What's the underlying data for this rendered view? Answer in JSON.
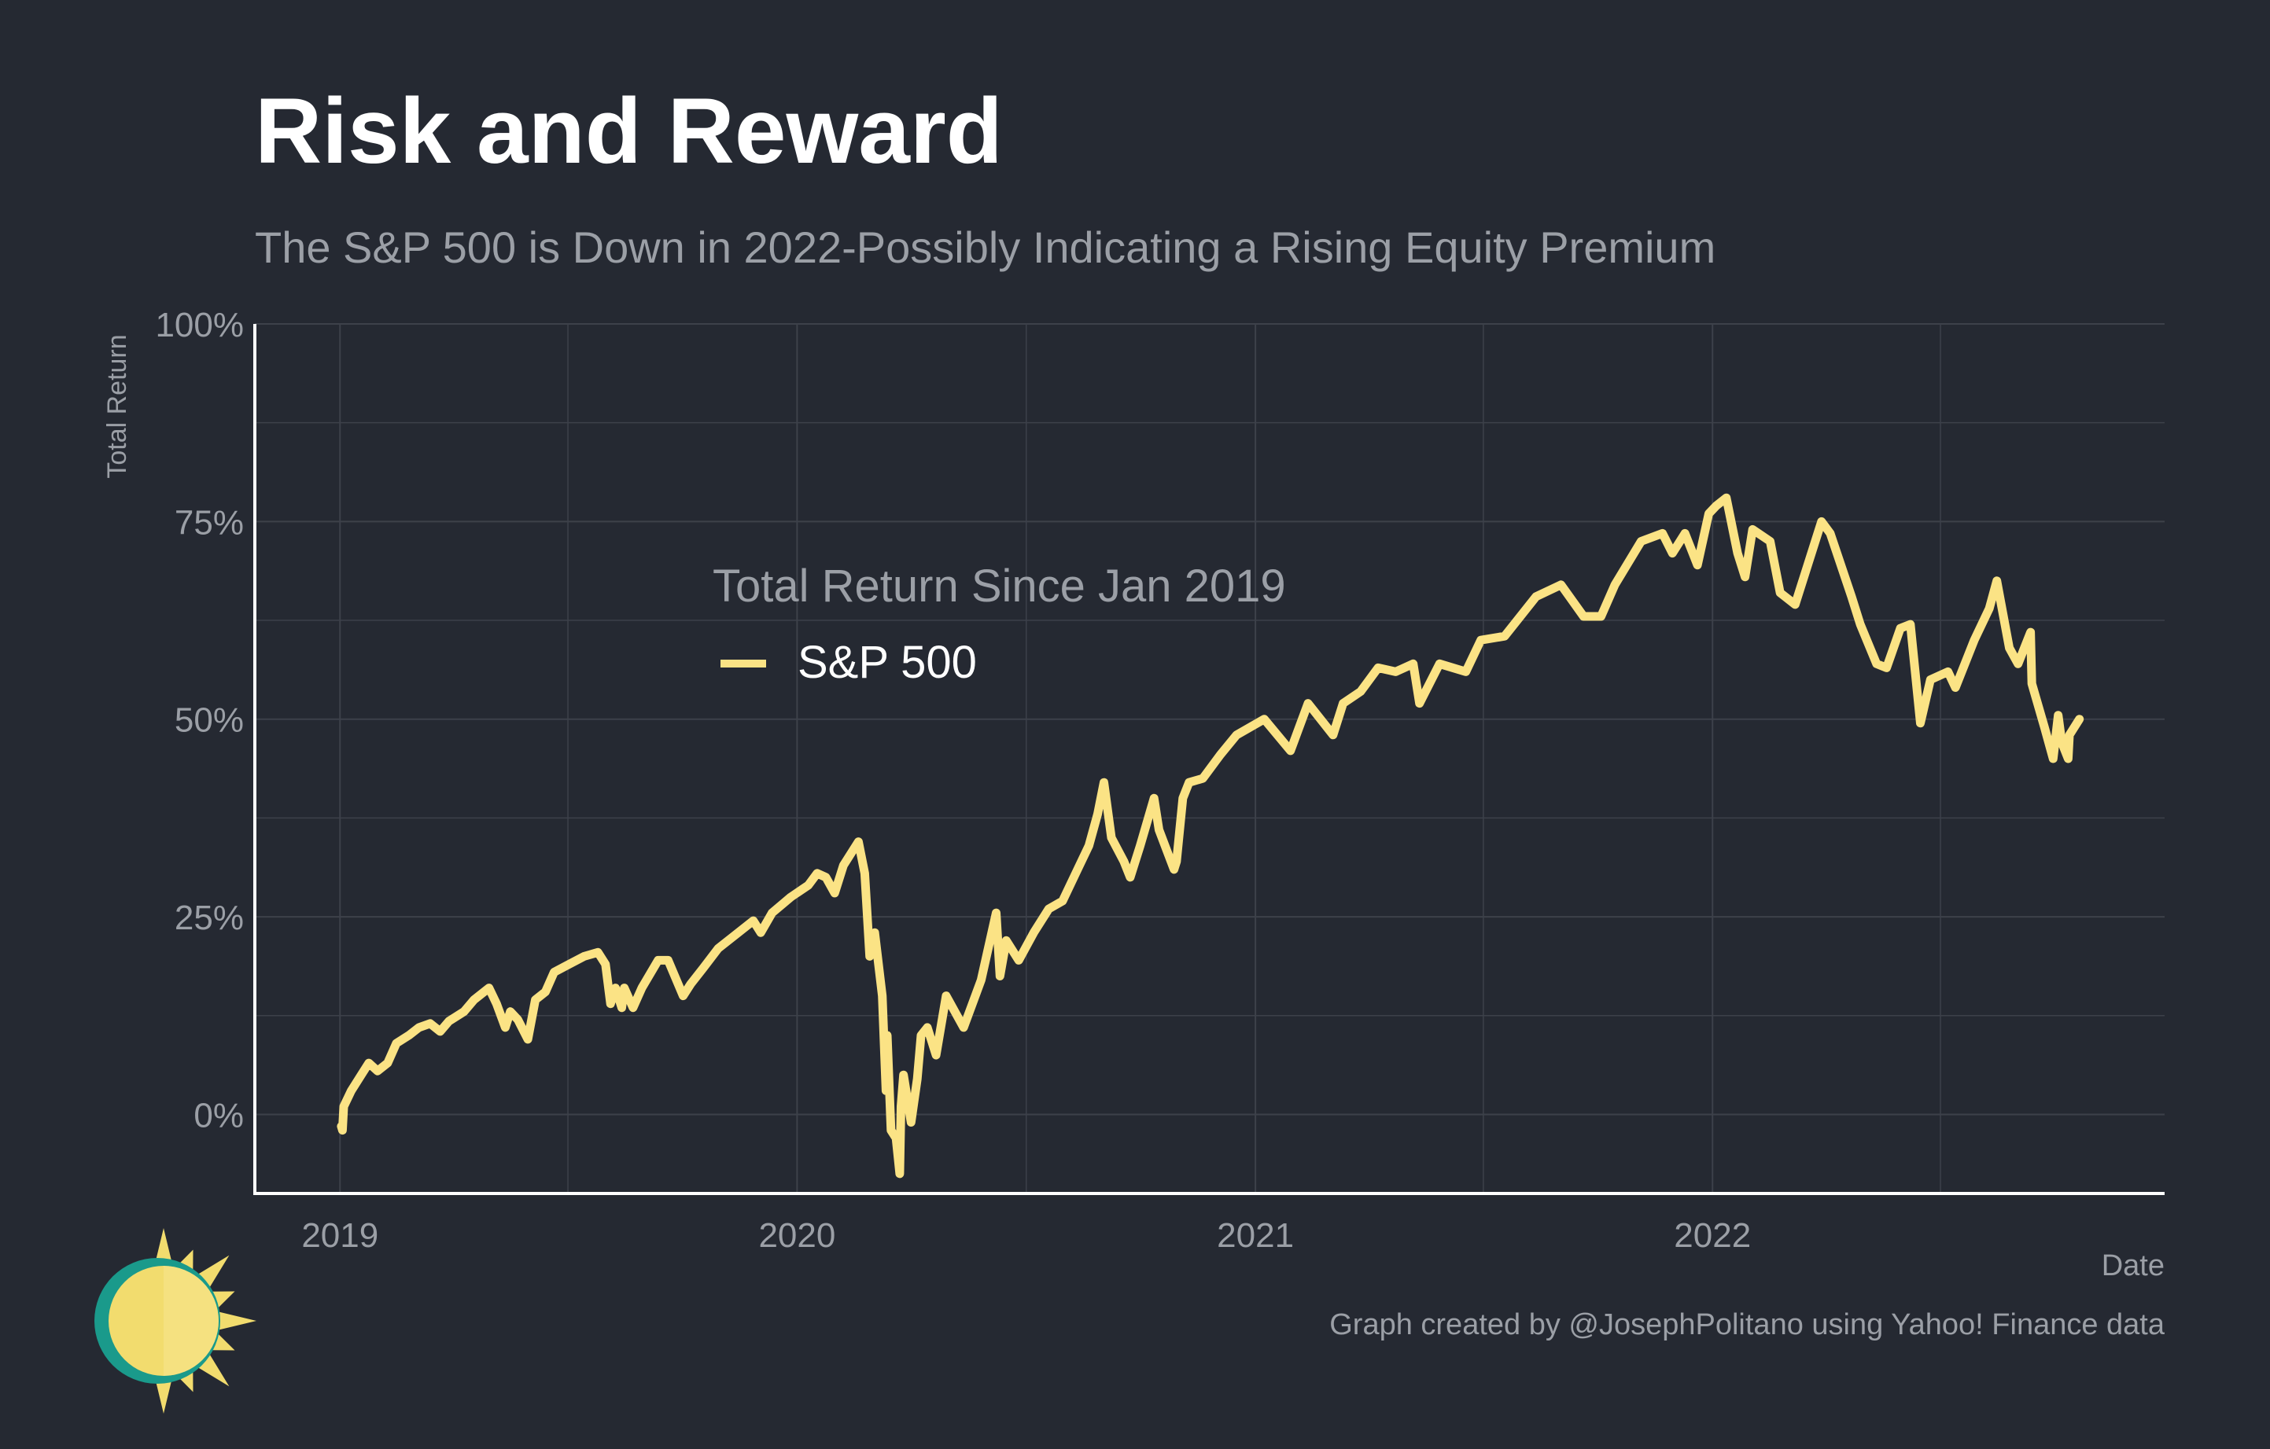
{
  "header": {
    "title": "Risk and Reward",
    "subtitle": "The S&P 500 is Down in 2022-Possibly Indicating a Rising Equity Premium"
  },
  "footer": {
    "caption": "Graph created by @JosephPolitano using Yahoo! Finance data"
  },
  "logo": {
    "icon": "sun-logo-icon",
    "colors": {
      "ring": "#1a9a8b",
      "sun": "#f2dc6e",
      "face": "#f7e48c"
    }
  },
  "colors": {
    "background": "#252932",
    "grid": "#3d414a",
    "axis": "#ffffff",
    "text_muted": "#9b9fa6",
    "series": "#fbe385"
  },
  "chart_data": {
    "type": "line",
    "title": "Risk and Reward",
    "subtitle": "The S&P 500 is Down in 2022-Possibly Indicating a Rising Equity Premium",
    "xlabel": "Date",
    "ylabel": "Total Return",
    "xlim": [
      "2018-10-25",
      "2022-12-28"
    ],
    "ylim": [
      -10,
      100
    ],
    "x_ticks": [
      "2019",
      "2020",
      "2021",
      "2022"
    ],
    "y_ticks": [
      "0%",
      "25%",
      "50%",
      "75%",
      "100%"
    ],
    "y_tick_values": [
      0,
      25,
      50,
      75,
      100
    ],
    "grid": true,
    "legend": {
      "title": "Total Return Since Jan 2019",
      "placement": "center-left",
      "entries": [
        "S&P 500"
      ]
    },
    "series": [
      {
        "name": "S&P 500",
        "unit": "%",
        "points": [
          [
            "2019-01-02",
            -1.5
          ],
          [
            "2019-01-03",
            -2.0
          ],
          [
            "2019-01-04",
            1.0
          ],
          [
            "2019-01-10",
            3.0
          ],
          [
            "2019-01-18",
            5.0
          ],
          [
            "2019-01-24",
            6.5
          ],
          [
            "2019-01-31",
            5.5
          ],
          [
            "2019-02-08",
            6.5
          ],
          [
            "2019-02-15",
            9.0
          ],
          [
            "2019-02-25",
            10.0
          ],
          [
            "2019-03-05",
            11.0
          ],
          [
            "2019-03-14",
            11.5
          ],
          [
            "2019-03-22",
            10.5
          ],
          [
            "2019-03-29",
            11.8
          ],
          [
            "2019-04-10",
            13.0
          ],
          [
            "2019-04-18",
            14.5
          ],
          [
            "2019-04-30",
            16.0
          ],
          [
            "2019-05-06",
            14.0
          ],
          [
            "2019-05-13",
            11.0
          ],
          [
            "2019-05-17",
            13.0
          ],
          [
            "2019-05-23",
            12.0
          ],
          [
            "2019-05-31",
            9.5
          ],
          [
            "2019-06-06",
            14.5
          ],
          [
            "2019-06-14",
            15.5
          ],
          [
            "2019-06-21",
            18.0
          ],
          [
            "2019-07-03",
            19.0
          ],
          [
            "2019-07-15",
            20.0
          ],
          [
            "2019-07-26",
            20.5
          ],
          [
            "2019-08-01",
            19.0
          ],
          [
            "2019-08-05",
            14.0
          ],
          [
            "2019-08-09",
            16.0
          ],
          [
            "2019-08-14",
            13.5
          ],
          [
            "2019-08-16",
            16.0
          ],
          [
            "2019-08-23",
            13.5
          ],
          [
            "2019-08-30",
            16.0
          ],
          [
            "2019-09-12",
            19.5
          ],
          [
            "2019-09-20",
            19.5
          ],
          [
            "2019-10-02",
            15.0
          ],
          [
            "2019-10-08",
            16.5
          ],
          [
            "2019-10-18",
            18.5
          ],
          [
            "2019-10-30",
            21.0
          ],
          [
            "2019-11-15",
            23.0
          ],
          [
            "2019-11-27",
            24.5
          ],
          [
            "2019-12-03",
            23.0
          ],
          [
            "2019-12-12",
            25.5
          ],
          [
            "2019-12-27",
            27.5
          ],
          [
            "2020-01-10",
            29.0
          ],
          [
            "2020-01-17",
            30.5
          ],
          [
            "2020-01-24",
            30.0
          ],
          [
            "2020-01-31",
            28.0
          ],
          [
            "2020-02-07",
            31.5
          ],
          [
            "2020-02-19",
            34.5
          ],
          [
            "2020-02-24",
            30.5
          ],
          [
            "2020-02-28",
            20.0
          ],
          [
            "2020-03-03",
            23.0
          ],
          [
            "2020-03-09",
            15.0
          ],
          [
            "2020-03-12",
            3.0
          ],
          [
            "2020-03-13",
            10.0
          ],
          [
            "2020-03-16",
            -2.0
          ],
          [
            "2020-03-20",
            -3.0
          ],
          [
            "2020-03-23",
            -7.5
          ],
          [
            "2020-03-24",
            1.0
          ],
          [
            "2020-03-26",
            5.0
          ],
          [
            "2020-04-01",
            -1.0
          ],
          [
            "2020-04-06",
            4.5
          ],
          [
            "2020-04-09",
            10.0
          ],
          [
            "2020-04-14",
            11.0
          ],
          [
            "2020-04-21",
            7.5
          ],
          [
            "2020-04-29",
            15.0
          ],
          [
            "2020-05-13",
            11.0
          ],
          [
            "2020-05-27",
            17.0
          ],
          [
            "2020-06-08",
            25.5
          ],
          [
            "2020-06-11",
            17.5
          ],
          [
            "2020-06-16",
            22.0
          ],
          [
            "2020-06-26",
            19.5
          ],
          [
            "2020-07-08",
            23.0
          ],
          [
            "2020-07-20",
            26.0
          ],
          [
            "2020-07-31",
            27.0
          ],
          [
            "2020-08-12",
            31.0
          ],
          [
            "2020-08-21",
            34.0
          ],
          [
            "2020-08-28",
            38.0
          ],
          [
            "2020-09-02",
            42.0
          ],
          [
            "2020-09-08",
            35.0
          ],
          [
            "2020-09-18",
            32.0
          ],
          [
            "2020-09-23",
            30.0
          ],
          [
            "2020-10-01",
            34.0
          ],
          [
            "2020-10-12",
            40.0
          ],
          [
            "2020-10-16",
            36.0
          ],
          [
            "2020-10-28",
            31.0
          ],
          [
            "2020-10-30",
            32.0
          ],
          [
            "2020-11-04",
            40.0
          ],
          [
            "2020-11-09",
            42.0
          ],
          [
            "2020-11-20",
            42.5
          ],
          [
            "2020-12-04",
            45.5
          ],
          [
            "2020-12-17",
            48.0
          ],
          [
            "2021-01-08",
            50.0
          ],
          [
            "2021-01-29",
            46.0
          ],
          [
            "2021-02-12",
            52.0
          ],
          [
            "2021-03-04",
            48.0
          ],
          [
            "2021-03-12",
            52.0
          ],
          [
            "2021-03-26",
            53.5
          ],
          [
            "2021-04-09",
            56.5
          ],
          [
            "2021-04-23",
            56.0
          ],
          [
            "2021-05-07",
            57.0
          ],
          [
            "2021-05-12",
            52.0
          ],
          [
            "2021-05-28",
            57.0
          ],
          [
            "2021-06-18",
            56.0
          ],
          [
            "2021-06-30",
            60.0
          ],
          [
            "2021-07-19",
            60.5
          ],
          [
            "2021-08-13",
            65.5
          ],
          [
            "2021-09-02",
            67.0
          ],
          [
            "2021-09-20",
            63.0
          ],
          [
            "2021-10-04",
            63.0
          ],
          [
            "2021-10-15",
            67.0
          ],
          [
            "2021-11-05",
            72.5
          ],
          [
            "2021-11-22",
            73.5
          ],
          [
            "2021-11-30",
            71.0
          ],
          [
            "2021-12-10",
            73.5
          ],
          [
            "2021-12-20",
            69.5
          ],
          [
            "2021-12-29",
            76.0
          ],
          [
            "2022-01-04",
            77.0
          ],
          [
            "2022-01-12",
            78.0
          ],
          [
            "2022-01-21",
            71.0
          ],
          [
            "2022-01-27",
            68.0
          ],
          [
            "2022-02-02",
            74.0
          ],
          [
            "2022-02-16",
            72.5
          ],
          [
            "2022-02-24",
            66.0
          ],
          [
            "2022-03-08",
            64.5
          ],
          [
            "2022-03-29",
            75.0
          ],
          [
            "2022-04-05",
            73.5
          ],
          [
            "2022-04-22",
            65.5
          ],
          [
            "2022-04-29",
            62.0
          ],
          [
            "2022-05-12",
            57.0
          ],
          [
            "2022-05-20",
            56.5
          ],
          [
            "2022-05-31",
            61.5
          ],
          [
            "2022-06-08",
            62.0
          ],
          [
            "2022-06-16",
            49.5
          ],
          [
            "2022-06-24",
            55.0
          ],
          [
            "2022-07-08",
            56.0
          ],
          [
            "2022-07-14",
            54.0
          ],
          [
            "2022-07-29",
            60.0
          ],
          [
            "2022-08-10",
            64.0
          ],
          [
            "2022-08-16",
            67.5
          ],
          [
            "2022-08-26",
            59.0
          ],
          [
            "2022-09-02",
            57.0
          ],
          [
            "2022-09-12",
            61.0
          ],
          [
            "2022-09-13",
            54.5
          ],
          [
            "2022-09-23",
            49.0
          ],
          [
            "2022-09-30",
            45.0
          ],
          [
            "2022-10-04",
            50.5
          ],
          [
            "2022-10-07",
            47.0
          ],
          [
            "2022-10-12",
            45.0
          ],
          [
            "2022-10-13",
            48.0
          ],
          [
            "2022-10-21",
            50.0
          ]
        ]
      }
    ]
  }
}
